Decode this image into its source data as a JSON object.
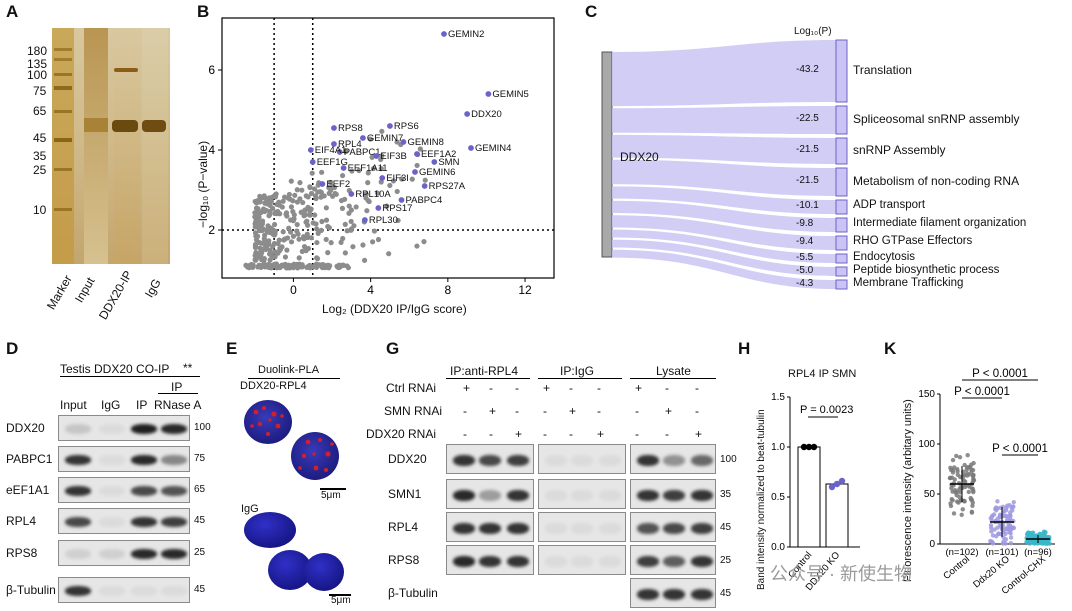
{
  "panels": {
    "A": {
      "label": "A",
      "markers": [
        "180",
        "135",
        "100",
        "75",
        "65",
        "45",
        "35",
        "25",
        "10"
      ],
      "lanes": [
        "Marker",
        "Input",
        "DDX20-IP",
        "IgG"
      ]
    },
    "B": {
      "label": "B",
      "xlabel": "Log₂ (DDX20 IP/IgG score)",
      "ylabel": "−log₁₀ (P−value)",
      "xticks": [
        "0",
        "4",
        "8",
        "12"
      ],
      "yticks": [
        "2",
        "4",
        "6"
      ]
    },
    "C": {
      "label": "C",
      "source": "DDX20",
      "header": "Log₁₀(P)",
      "terms": [
        {
          "name": "Translation",
          "logp": "-43.2"
        },
        {
          "name": "Spliceosomal snRNP assembly",
          "logp": "-22.5"
        },
        {
          "name": "snRNP Assembly",
          "logp": "-21.5"
        },
        {
          "name": "Metabolism of non-coding RNA",
          "logp": "-21.5"
        },
        {
          "name": "ADP transport",
          "logp": "-10.1"
        },
        {
          "name": "Intermediate filament organization",
          "logp": "-9.8"
        },
        {
          "name": "RHO GTPase Effectors",
          "logp": "-9.4"
        },
        {
          "name": "Endocytosis",
          "logp": "-5.5"
        },
        {
          "name": "Peptide biosynthetic process",
          "logp": "-5.0"
        },
        {
          "name": "Membrane Trafficking",
          "logp": "-4.3"
        }
      ]
    },
    "D": {
      "label": "D",
      "title": "Testis DDX20  CO-IP",
      "stars": "**",
      "lanes": [
        "Input",
        "IgG",
        "IP",
        "IP\nRNase A"
      ],
      "ip_label": "IP",
      "rnase_label": "RNase A",
      "rows": [
        "DDX20",
        "PABPC1",
        "eEF1A1",
        "RPL4",
        "RPS8",
        "β-Tubulin"
      ],
      "mw": [
        "100",
        "75",
        "65",
        "45",
        "25",
        "45"
      ]
    },
    "E": {
      "label": "E",
      "title": "Duolink-PLA",
      "top_label": "DDX20-RPL4",
      "bottom_label": "IgG",
      "scale": "5μm"
    },
    "G": {
      "label": "G",
      "headers": [
        "IP:anti-RPL4",
        "IP:IgG",
        "Lysate"
      ],
      "treatments": [
        {
          "name": "Ctrl RNAi",
          "signs": [
            "+",
            "-",
            "-",
            "+",
            "-",
            "-",
            "+",
            "-",
            "-"
          ]
        },
        {
          "name": "SMN RNAi",
          "signs": [
            "-",
            "+",
            "-",
            "-",
            "+",
            "-",
            "-",
            "+",
            "-"
          ]
        },
        {
          "name": "DDX20 RNAi",
          "signs": [
            "-",
            "-",
            "+",
            "-",
            "-",
            "+",
            "-",
            "-",
            "+"
          ]
        }
      ],
      "rows": [
        "DDX20",
        "SMN1",
        "RPL4",
        "RPS8",
        "β-Tubulin"
      ],
      "mw": [
        "100",
        "35",
        "45",
        "25",
        "45"
      ]
    },
    "H": {
      "label": "H",
      "title": "RPL4 IP SMN",
      "ylabel": "Band intensity normalized to beat-tubulin",
      "pvalue": "P = 0.0023",
      "yticks": [
        "0.0",
        "0.5",
        "1.0",
        "1.5"
      ],
      "categories": [
        "Control",
        "DDX20 KO"
      ]
    },
    "K": {
      "label": "K",
      "ylabel": "Fluorescence intensity (arbitary units)",
      "yticks": [
        "0",
        "50",
        "100",
        "150"
      ],
      "pvalues": [
        "P < 0.0001",
        "P < 0.0001",
        "P < 0.0001"
      ],
      "categories": [
        "Control",
        "Ddx20 KO",
        "Control-CHX"
      ],
      "ns": [
        "(n=102)",
        "(n=101)",
        "(n=96)"
      ]
    }
  },
  "chart_data": [
    {
      "type": "scatter",
      "title": "",
      "xlabel": "Log₂ (DDX20 IP/IgG score)",
      "ylabel": "−log₁₀ (P−value)",
      "xlim": [
        -3.7,
        13.5
      ],
      "ylim": [
        0.8,
        7.3
      ],
      "thresholds": {
        "x": [
          -1,
          1
        ],
        "y": 2
      },
      "labeled_points": [
        {
          "name": "GEMIN2",
          "x": 7.8,
          "y": 6.9
        },
        {
          "name": "GEMIN5",
          "x": 10.1,
          "y": 5.4
        },
        {
          "name": "DDX20",
          "x": 9.0,
          "y": 4.9
        },
        {
          "name": "GEMIN4",
          "x": 9.2,
          "y": 4.05
        },
        {
          "name": "SMN",
          "x": 7.3,
          "y": 3.7
        },
        {
          "name": "GEMIN6",
          "x": 6.3,
          "y": 3.45
        },
        {
          "name": "RPS27A",
          "x": 6.8,
          "y": 3.1
        },
        {
          "name": "PABPC4",
          "x": 5.6,
          "y": 2.75
        },
        {
          "name": "EEF1A2",
          "x": 6.4,
          "y": 3.9
        },
        {
          "name": "GEMIN8",
          "x": 5.7,
          "y": 4.2
        },
        {
          "name": "RPS6",
          "x": 5.0,
          "y": 4.6
        },
        {
          "name": "GEMIN7",
          "x": 3.6,
          "y": 4.3
        },
        {
          "name": "RPS8",
          "x": 2.1,
          "y": 4.55
        },
        {
          "name": "RPL4",
          "x": 2.1,
          "y": 4.15
        },
        {
          "name": "PABPC1",
          "x": 2.4,
          "y": 3.95
        },
        {
          "name": "EIF4A1",
          "x": 0.9,
          "y": 4.0
        },
        {
          "name": "EEF1G",
          "x": 1.0,
          "y": 3.7
        },
        {
          "name": "EEF1A11",
          "x": 2.6,
          "y": 3.55
        },
        {
          "name": "EIF3B",
          "x": 4.3,
          "y": 3.85
        },
        {
          "name": "EIF3I",
          "x": 4.6,
          "y": 3.3
        },
        {
          "name": "EEF2",
          "x": 1.5,
          "y": 3.15
        },
        {
          "name": "RPL10A",
          "x": 3.0,
          "y": 2.9
        },
        {
          "name": "RPS17",
          "x": 4.4,
          "y": 2.55
        },
        {
          "name": "RPL30",
          "x": 3.7,
          "y": 2.25
        }
      ]
    },
    {
      "type": "bar",
      "title": "RPL4 IP SMN",
      "categories": [
        "Control",
        "DDX20 KO"
      ],
      "values": [
        1.0,
        0.63
      ],
      "points": [
        [
          1.0,
          1.0,
          1.0
        ],
        [
          0.6,
          0.63,
          0.66
        ]
      ],
      "ylabel": "Band intensity normalized to beat-tubulin",
      "ylim": [
        0,
        1.5
      ]
    },
    {
      "type": "scatter",
      "title": "",
      "categories": [
        "Control",
        "Ddx20 KO",
        "Control-CHX"
      ],
      "values": [
        60,
        22,
        5
      ],
      "sd": [
        18,
        15,
        4
      ],
      "ylabel": "Fluorescence intensity (arbitary units)",
      "ylim": [
        0,
        150
      ]
    }
  ],
  "watermark": "公众号 · 新使生物",
  "colors": {
    "accent_purple": "#6b63c9",
    "flow": "#c9c4f3",
    "gold": "#b08a28",
    "blot_bg": "#e6e6e6"
  }
}
